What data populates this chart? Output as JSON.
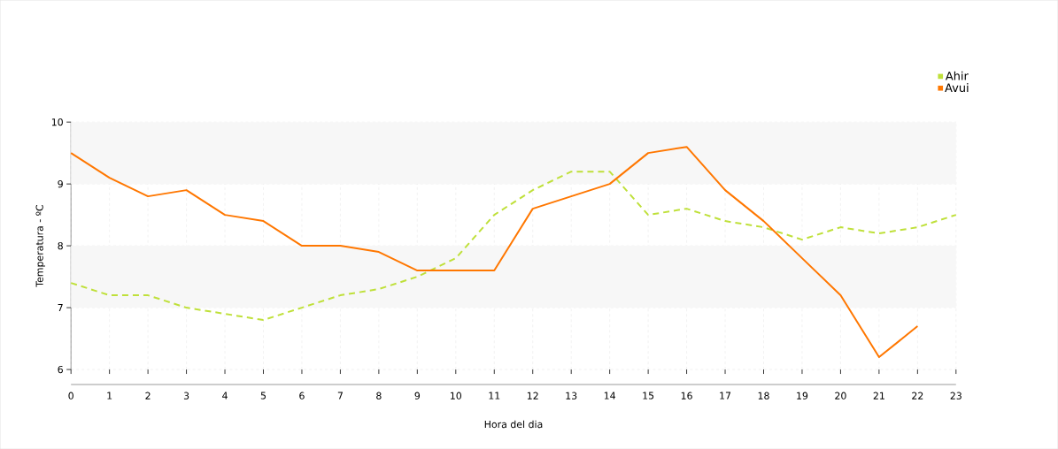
{
  "chart_data": {
    "type": "line",
    "xlabel": "Hora del dia",
    "ylabel": "Temperatura - ºC",
    "x": [
      0,
      1,
      2,
      3,
      4,
      5,
      6,
      7,
      8,
      9,
      10,
      11,
      12,
      13,
      14,
      15,
      16,
      17,
      18,
      19,
      20,
      21,
      22,
      23
    ],
    "series": [
      {
        "name": "Ahir",
        "color": "#bfe03a",
        "line_style": "dashed",
        "values": [
          7.4,
          7.2,
          7.2,
          7.0,
          6.9,
          6.8,
          7.0,
          7.2,
          7.3,
          7.5,
          7.8,
          8.5,
          8.9,
          9.2,
          9.2,
          8.5,
          8.6,
          8.4,
          8.3,
          8.1,
          8.3,
          8.2,
          8.3,
          8.5
        ]
      },
      {
        "name": "Avui",
        "color": "#ff7700",
        "line_style": "solid",
        "values": [
          9.5,
          9.1,
          8.8,
          8.9,
          8.5,
          8.4,
          8.0,
          8.0,
          7.9,
          7.6,
          7.6,
          7.6,
          8.6,
          8.8,
          9.0,
          9.5,
          9.6,
          8.9,
          8.4,
          7.8,
          7.2,
          6.2,
          6.7,
          null
        ]
      }
    ],
    "xlim": [
      0,
      23
    ],
    "xticks": [
      0,
      1,
      2,
      3,
      4,
      5,
      6,
      7,
      8,
      9,
      10,
      11,
      12,
      13,
      14,
      15,
      16,
      17,
      18,
      19,
      20,
      21,
      22,
      23
    ],
    "ylim": [
      6,
      10
    ],
    "yticks": [
      6,
      7,
      8,
      9,
      10
    ],
    "bands": [
      {
        "axis": "y",
        "from": 7,
        "to": 8,
        "color": "#f7f7f7"
      },
      {
        "axis": "y",
        "from": 9,
        "to": 10,
        "color": "#f7f7f7"
      }
    ],
    "grid": true,
    "legend": "top right",
    "marker": "none"
  }
}
